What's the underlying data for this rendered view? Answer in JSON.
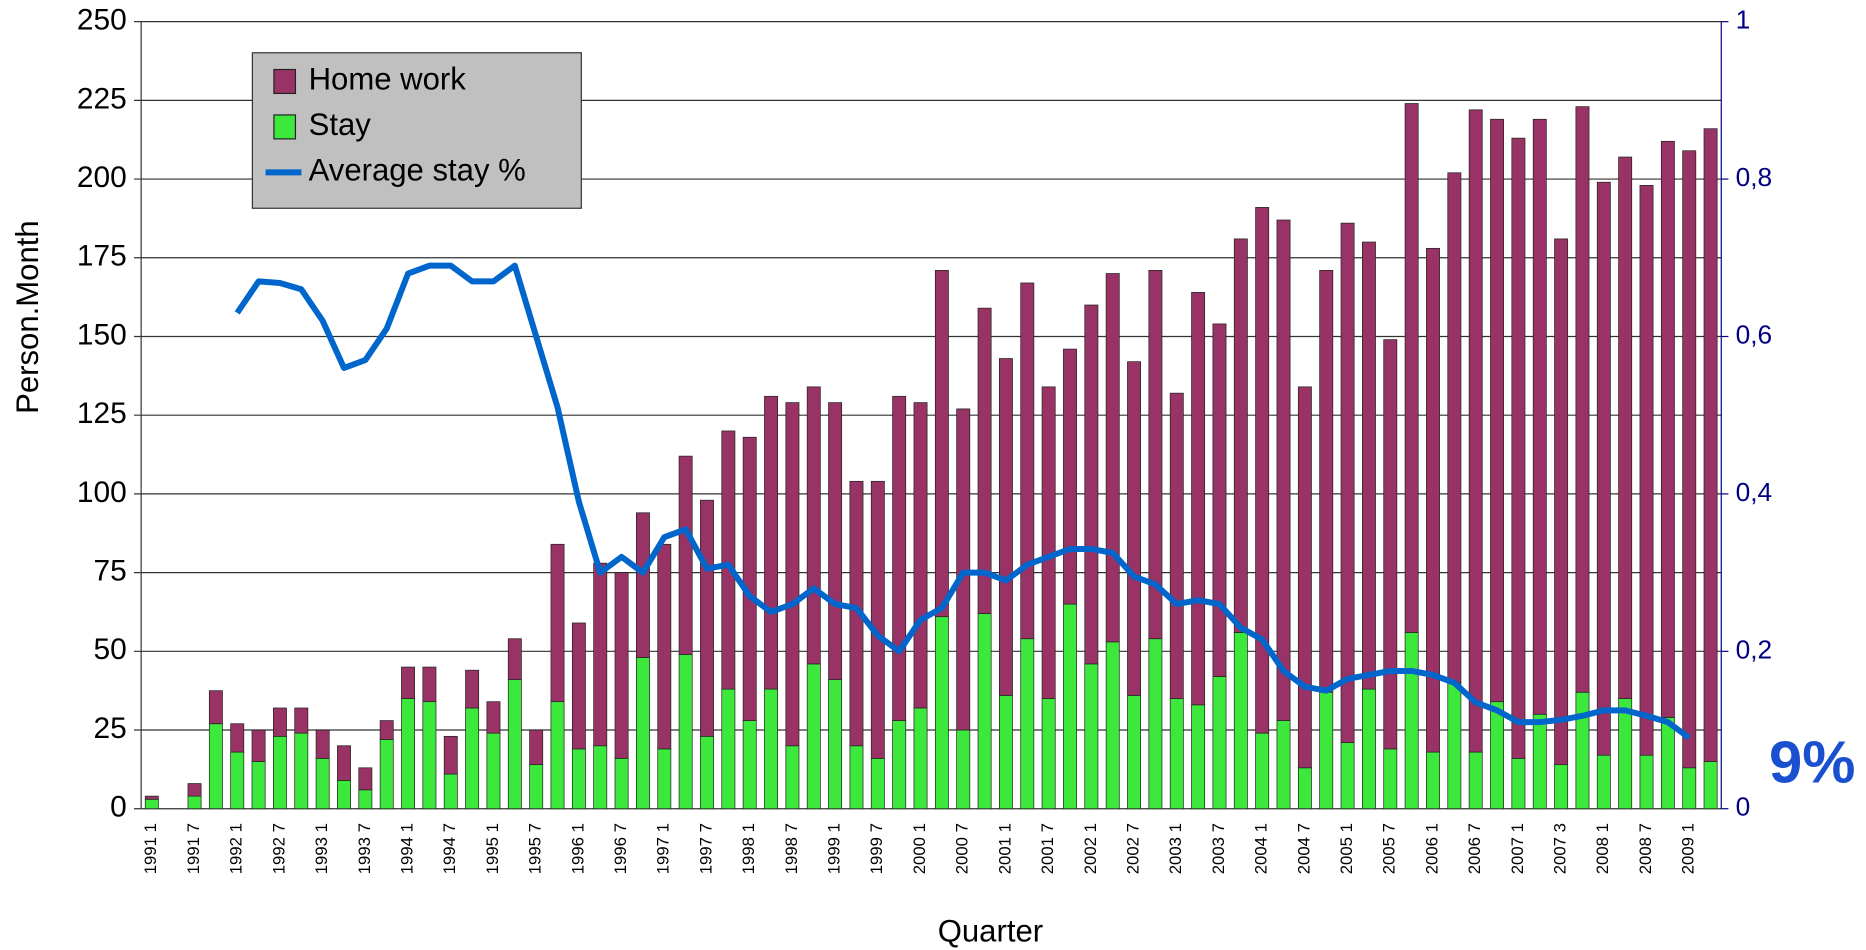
{
  "chart_data": {
    "type": "bar",
    "stacked": true,
    "x_label": "Quarter",
    "y_label": "Person.Month",
    "annotation": "9%",
    "categories": [
      "1991 1",
      null,
      "1991 7",
      null,
      "1992 1",
      null,
      "1992 7",
      null,
      "1993 1",
      null,
      "1993 7",
      null,
      "1994 1",
      null,
      "1994 7",
      null,
      "1995 1",
      null,
      "1995 7",
      null,
      "1996 1",
      null,
      "1996 7",
      null,
      "1997 1",
      null,
      "1997 7",
      null,
      "1998 1",
      null,
      "1998 7",
      null,
      "1999 1",
      null,
      "1999 7",
      null,
      "2000 1",
      null,
      "2000 7",
      null,
      "2001 1",
      null,
      "2001 7",
      null,
      "2002 1",
      null,
      "2002 7",
      null,
      "2003 1",
      null,
      "2003 7",
      null,
      "2004 1",
      null,
      "2004 7",
      null,
      "2005 1",
      null,
      "2005 7",
      null,
      "2006 1",
      null,
      "2006 7",
      null,
      "2007 1",
      null,
      "2007 3",
      null,
      "2008 1",
      null,
      "2008 7",
      null,
      "2009 1",
      null
    ],
    "series": [
      {
        "name": "Home work",
        "color": "#993366",
        "values": [
          1,
          0,
          4,
          10.5,
          9,
          10,
          9,
          8,
          9,
          11,
          7,
          6,
          10,
          11,
          12,
          12,
          10,
          13,
          11,
          50,
          40,
          58,
          59,
          46,
          65,
          63,
          75,
          82,
          90,
          93,
          109,
          88,
          88,
          84,
          88,
          103,
          97,
          110,
          102,
          97,
          107,
          113,
          99,
          81,
          114,
          117,
          106,
          117,
          97,
          131,
          112,
          125,
          167,
          159,
          121,
          134,
          165,
          142,
          130,
          168,
          160,
          162,
          204,
          185,
          197,
          189,
          167,
          186,
          182,
          172,
          181,
          183,
          196,
          201
        ]
      },
      {
        "name": "Stay",
        "color": "#3de83d",
        "values": [
          3,
          0,
          4,
          27,
          18,
          15,
          23,
          24,
          16,
          9,
          6,
          22,
          35,
          34,
          11,
          32,
          24,
          41,
          14,
          34,
          19,
          20,
          16,
          48,
          19,
          49,
          23,
          38,
          28,
          38,
          20,
          46,
          41,
          20,
          16,
          28,
          32,
          61,
          25,
          62,
          36,
          54,
          35,
          65,
          46,
          53,
          36,
          54,
          35,
          33,
          42,
          56,
          24,
          28,
          13,
          37,
          21,
          38,
          19,
          56,
          18,
          40,
          18,
          34,
          16,
          30,
          14,
          37,
          17,
          35,
          17,
          29,
          13,
          15
        ]
      },
      {
        "name": "Average stay %",
        "color": "#0066cc",
        "type": "line",
        "axis": "y2",
        "values": [
          null,
          null,
          null,
          null,
          0.63,
          0.67,
          0.668,
          0.66,
          0.62,
          0.56,
          0.57,
          0.61,
          0.68,
          0.69,
          0.69,
          0.67,
          0.67,
          0.69,
          0.6,
          0.51,
          0.39,
          0.3,
          0.32,
          0.3,
          0.345,
          0.355,
          0.305,
          0.31,
          0.27,
          0.25,
          0.26,
          0.28,
          0.26,
          0.255,
          0.22,
          0.2,
          0.24,
          0.255,
          0.3,
          0.3,
          0.29,
          0.31,
          0.32,
          0.33,
          0.33,
          0.325,
          0.295,
          0.285,
          0.26,
          0.265,
          0.26,
          0.23,
          0.215,
          0.175,
          0.155,
          0.15,
          0.165,
          0.17,
          0.175,
          0.175,
          0.17,
          0.16,
          0.135,
          0.125,
          0.11,
          0.11,
          0.113,
          0.118,
          0.125,
          0.125,
          0.118,
          0.11,
          0.09,
          null
        ]
      }
    ],
    "ylim": [
      0,
      250
    ],
    "yticks": [
      0,
      25,
      50,
      75,
      100,
      125,
      150,
      175,
      200,
      225,
      250
    ],
    "y2lim": [
      0,
      1
    ],
    "y2ticks": [
      0,
      {
        "value": 0.2,
        "label": "0,2"
      },
      {
        "value": 0.4,
        "label": "0,4"
      },
      {
        "value": 0.6,
        "label": "0,6"
      },
      {
        "value": 0.8,
        "label": "0,8"
      },
      1
    ],
    "grid": true,
    "legend": "upper left"
  }
}
